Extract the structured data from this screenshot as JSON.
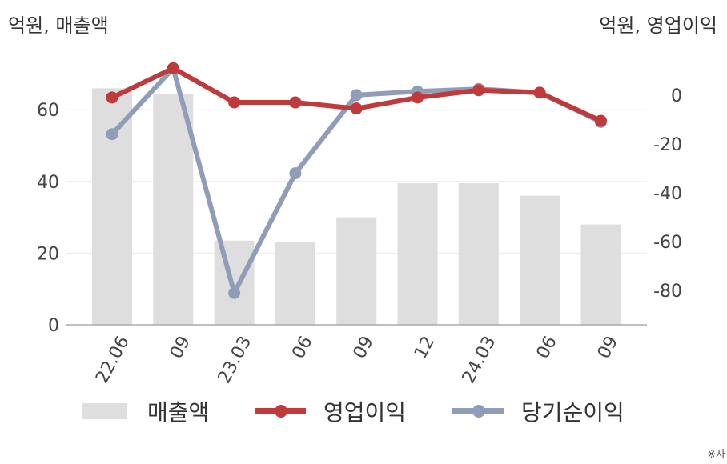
{
  "units": {
    "left": "억원, 매출액",
    "right": "억원, 영업이익"
  },
  "chart_data": {
    "type": "bar+line",
    "categories": [
      "22.06",
      "09",
      "23.03",
      "06",
      "09",
      "12",
      "24.03",
      "06",
      "09"
    ],
    "series": [
      {
        "name": "매출액",
        "type": "bar",
        "axis": "left",
        "color": "#dedede",
        "values": [
          66,
          64.5,
          23.5,
          23,
          30,
          39.5,
          39.5,
          36,
          28
        ]
      },
      {
        "name": "영업이익",
        "type": "line",
        "axis": "right",
        "color": "#c0393b",
        "values": [
          -1,
          11,
          -3,
          -3,
          -5.5,
          -1,
          2,
          1,
          -10.5
        ]
      },
      {
        "name": "당기순이익",
        "type": "line",
        "axis": "right",
        "color": "#8f9db8",
        "values": [
          -16,
          11,
          -81,
          -32,
          0,
          1.5,
          2.5,
          1,
          -11
        ]
      }
    ],
    "y_left": {
      "range": [
        0,
        75
      ],
      "ticks": [
        "0",
        "20",
        "40",
        "60"
      ]
    },
    "y_right": {
      "range": [
        -94,
        16
      ],
      "ticks": [
        "0",
        "-20",
        "-40",
        "-60",
        "-80"
      ]
    },
    "grid": true,
    "legend": "bottom"
  },
  "legend": {
    "bar": "매출액",
    "line1": "영업이익",
    "line2": "당기순이익"
  },
  "note": "※자"
}
